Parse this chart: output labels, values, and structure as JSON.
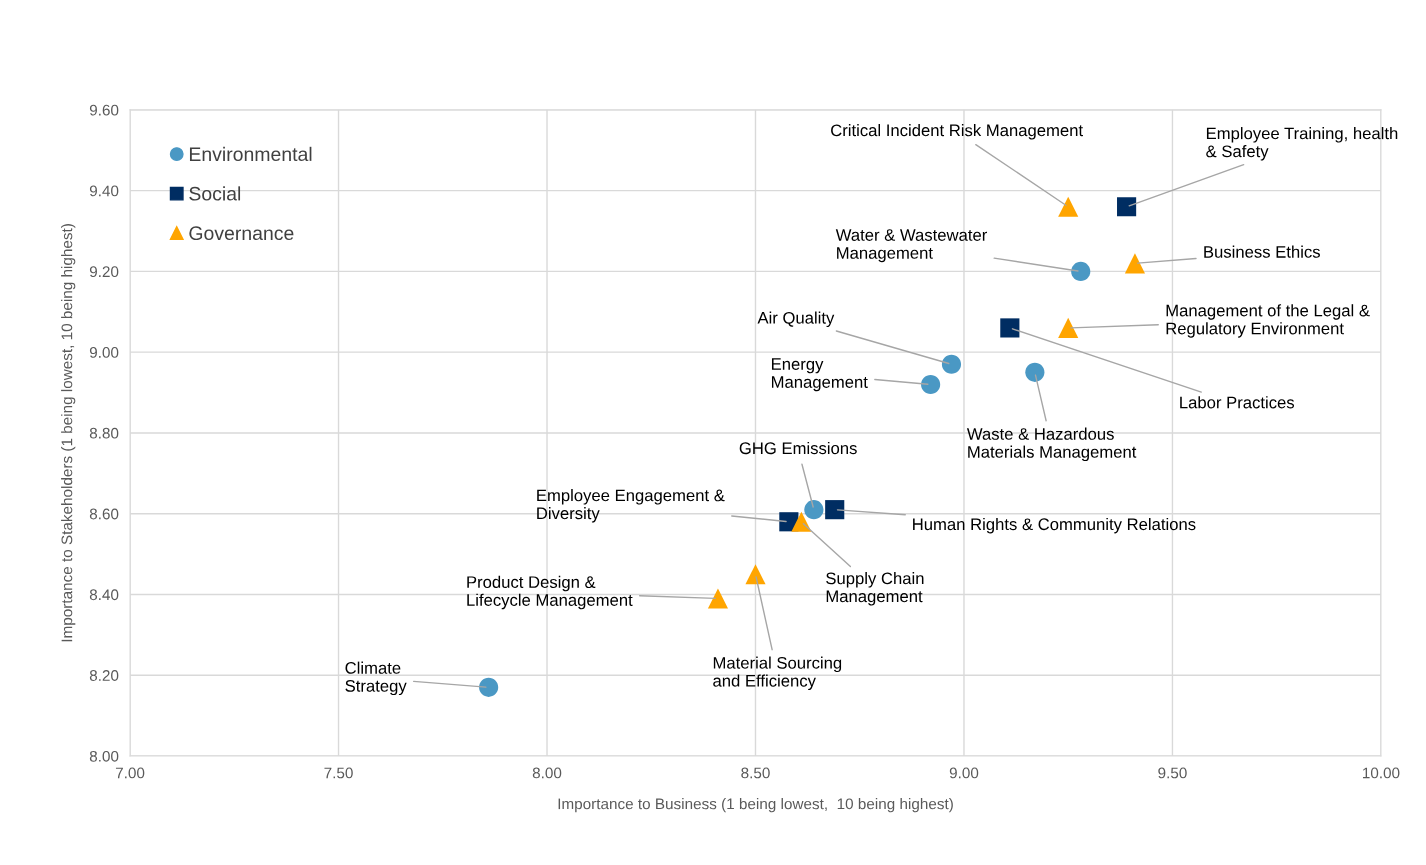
{
  "chart_data": {
    "type": "scatter",
    "xlabel": "Importance to Business (1 being lowest,  10 being highest)",
    "ylabel": "Importance to Stakeholders (1 being lowest, 10 being highest)",
    "xlim": [
      7,
      10
    ],
    "ylim": [
      8,
      9.6
    ],
    "xticks": [
      {
        "value": 7,
        "label": "7.00"
      },
      {
        "value": 7.5,
        "label": "7.50"
      },
      {
        "value": 8,
        "label": "8.00"
      },
      {
        "value": 8.5,
        "label": "8.50"
      },
      {
        "value": 9,
        "label": "9.00"
      },
      {
        "value": 9.5,
        "label": "9.50"
      },
      {
        "value": 10,
        "label": "10.00"
      }
    ],
    "yticks": [
      {
        "value": 8,
        "label": "8.00"
      },
      {
        "value": 8.2,
        "label": "8.20"
      },
      {
        "value": 8.4,
        "label": "8.40"
      },
      {
        "value": 8.6,
        "label": "8.60"
      },
      {
        "value": 8.8,
        "label": "8.80"
      },
      {
        "value": 9,
        "label": "9.00"
      },
      {
        "value": 9.2,
        "label": "9.20"
      },
      {
        "value": 9.4,
        "label": "9.40"
      },
      {
        "value": 9.6,
        "label": "9.60"
      }
    ],
    "grid": true,
    "legend": "top left",
    "series": [
      {
        "name": "Environmental",
        "color": "#4a98c4",
        "marker": "circle",
        "x": [
          7.86,
          8.97,
          8.92,
          9.28,
          9.17,
          8.64
        ],
        "values": [
          8.17,
          8.97,
          8.92,
          9.2,
          8.95,
          8.61
        ]
      },
      {
        "name": "Social",
        "color": "#002d62",
        "marker": "square",
        "x": [
          9.39,
          9.11,
          8.69,
          8.58
        ],
        "values": [
          9.36,
          9.06,
          8.61,
          8.58
        ]
      },
      {
        "name": "Governance",
        "color": "#ffa500",
        "marker": "triangle",
        "x": [
          9.25,
          9.41,
          9.25,
          8.61,
          8.5,
          8.41
        ],
        "values": [
          9.36,
          9.22,
          9.06,
          8.58,
          8.45,
          8.39
        ]
      }
    ],
    "annotations": [
      {
        "text": "Climate\nStrategy",
        "x": 7.86,
        "y": 8.17
      },
      {
        "text": "Air Quality",
        "x": 8.97,
        "y": 8.97
      },
      {
        "text": "Energy\nManagement",
        "x": 8.92,
        "y": 8.92
      },
      {
        "text": "Water & Wastewater\nManagement",
        "x": 9.28,
        "y": 9.2
      },
      {
        "text": "Waste & Hazardous\nMaterials Management",
        "x": 9.17,
        "y": 8.95
      },
      {
        "text": "GHG Emissions",
        "x": 8.64,
        "y": 8.61
      },
      {
        "text": "Employee Training, health\n& Safety",
        "x": 9.39,
        "y": 9.36
      },
      {
        "text": "Labor Practices",
        "x": 9.11,
        "y": 9.06
      },
      {
        "text": "Human Rights & Community Relations",
        "x": 8.69,
        "y": 8.61
      },
      {
        "text": "Employee Engagement &\nDiversity",
        "x": 8.58,
        "y": 8.58
      },
      {
        "text": "Critical Incident Risk Management",
        "x": 9.25,
        "y": 9.36
      },
      {
        "text": "Business Ethics",
        "x": 9.41,
        "y": 9.22
      },
      {
        "text": "Management of the Legal &\nRegulatory Environment",
        "x": 9.25,
        "y": 9.06
      },
      {
        "text": "Supply Chain\nManagement",
        "x": 8.61,
        "y": 8.58
      },
      {
        "text": "Material Sourcing\nand Efficiency",
        "x": 8.5,
        "y": 8.45
      },
      {
        "text": "Product Design &\nLifecycle Management",
        "x": 8.41,
        "y": 8.39
      }
    ]
  }
}
